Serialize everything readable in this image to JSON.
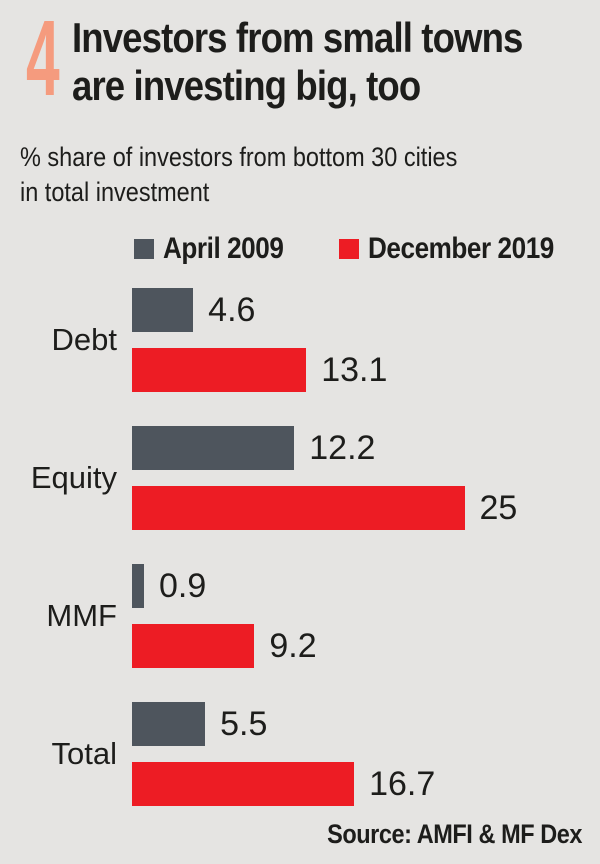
{
  "page": {
    "badge_number": "4",
    "title_line1": "Investors from small towns",
    "title_line2": "are investing big, too",
    "subtitle_line1": "% share of investors from bottom 30 cities",
    "subtitle_line2": "in total investment",
    "source": "Source: AMFI & MF Dex"
  },
  "colors": {
    "background": "#e5e4e2",
    "badge": "#f59b7e",
    "series_april_2009": "#4e555d",
    "series_december_2019": "#ed1c24",
    "text": "#1d1d1b"
  },
  "chart_data": {
    "type": "bar",
    "orientation": "horizontal",
    "title": "Investors from small towns are investing big, too",
    "subtitle": "% share of investors from bottom 30 cities in total investment",
    "categories": [
      "Debt",
      "Equity",
      "MMF",
      "Total"
    ],
    "series": [
      {
        "name": "April 2009",
        "color": "#4e555d",
        "values": [
          4.6,
          12.2,
          0.9,
          5.5
        ]
      },
      {
        "name": "December 2019",
        "color": "#ed1c24",
        "values": [
          13.1,
          25,
          9.2,
          16.7
        ]
      }
    ],
    "value_labels_shown": true,
    "xlim": [
      0,
      25
    ],
    "grid": false,
    "legend_position": "top",
    "source": "Source: AMFI & MF Dex"
  }
}
